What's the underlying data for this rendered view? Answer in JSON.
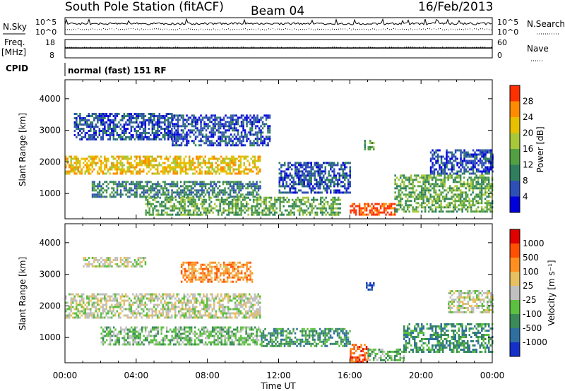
{
  "header": {
    "station": "South Pole Station (fitACF)",
    "beam": "Beam 04",
    "date": "16/Feb/2013"
  },
  "status_panels": {
    "nsky_label": "N.Sky",
    "nsky_ticks": [
      "10^5",
      "10^0"
    ],
    "nsearch_label": "N.Search",
    "nsearch_ticks": [
      "10^5",
      "10^0"
    ],
    "freq_label": "Freq.",
    "freq_unit": "[MHz]",
    "freq_ticks": [
      "18",
      "8"
    ],
    "nave_label": "Nave",
    "nave_ticks": [
      "60",
      "0"
    ],
    "cpid_label": "CPID",
    "cpid_value": "normal (fast) 151 RF"
  },
  "chart_data": [
    {
      "type": "heatmap",
      "name": "power",
      "ylabel": "Slant Range [km]",
      "yticks": [
        "4000",
        "3000",
        "2000",
        "1000"
      ],
      "ylim": [
        200,
        4600
      ],
      "xlim": [
        0,
        24
      ],
      "xticks": [
        "00:00",
        "04:00",
        "08:00",
        "12:00",
        "16:00",
        "20:00",
        "00:00"
      ],
      "colorbar": {
        "label": "Power [dB]",
        "ticks": [
          "28",
          "24",
          "20",
          "16",
          "12",
          "8",
          "4"
        ],
        "colors": [
          "#0000dd",
          "#2e4fb5",
          "#2f7f5f",
          "#53a043",
          "#a8c83a",
          "#e8c000",
          "#ff8c00",
          "#ff3000"
        ]
      },
      "bands": [
        {
          "t0": 0.0,
          "t1": 11.0,
          "r0": 1650,
          "r1": 2200,
          "level": 5
        },
        {
          "t0": 0.5,
          "t1": 6.0,
          "r0": 2700,
          "r1": 3550,
          "level": 1
        },
        {
          "t0": 6.0,
          "t1": 11.5,
          "r0": 2500,
          "r1": 3500,
          "level": 1
        },
        {
          "t0": 1.5,
          "t1": 11.0,
          "r0": 900,
          "r1": 1400,
          "level": 2
        },
        {
          "t0": 4.5,
          "t1": 15.5,
          "r0": 300,
          "r1": 900,
          "level": 3
        },
        {
          "t0": 12.0,
          "t1": 16.0,
          "r0": 1000,
          "r1": 2000,
          "level": 1
        },
        {
          "t0": 16.0,
          "t1": 18.5,
          "r0": 300,
          "r1": 700,
          "level": 7
        },
        {
          "t0": 18.5,
          "t1": 24.0,
          "r0": 400,
          "r1": 1600,
          "level": 3
        },
        {
          "t0": 20.5,
          "t1": 24.0,
          "r0": 1600,
          "r1": 2400,
          "level": 1
        },
        {
          "t0": 16.8,
          "t1": 17.3,
          "r0": 2400,
          "r1": 2700,
          "level": 3
        }
      ]
    },
    {
      "type": "heatmap",
      "name": "velocity",
      "ylabel": "Slant Range [km]",
      "yticks": [
        "4000",
        "3000",
        "2000",
        "1000"
      ],
      "ylim": [
        200,
        4600
      ],
      "xlim": [
        0,
        24
      ],
      "xlabel": "Time UT",
      "xticks": [
        "00:00",
        "04:00",
        "08:00",
        "12:00",
        "16:00",
        "20:00",
        "00:00"
      ],
      "colorbar": {
        "label": "Velocity [m s⁻¹]",
        "ticks": [
          "1000",
          "500",
          "100",
          "25",
          "-25",
          "-100",
          "-500",
          "-1000"
        ],
        "colors": [
          "#1530c8",
          "#2e6fa0",
          "#3a8a5a",
          "#5cc040",
          "#c0c0c0",
          "#e8c060",
          "#ff9020",
          "#ff5000",
          "#e00000"
        ]
      },
      "bands": [
        {
          "t0": 0.0,
          "t1": 11.0,
          "r0": 1650,
          "r1": 2400,
          "level": 4
        },
        {
          "t0": 1.0,
          "t1": 4.5,
          "r0": 3250,
          "r1": 3550,
          "level": 4
        },
        {
          "t0": 6.5,
          "t1": 10.5,
          "r0": 2750,
          "r1": 3400,
          "level": 6
        },
        {
          "t0": 2.0,
          "t1": 11.0,
          "r0": 800,
          "r1": 1350,
          "level": 3
        },
        {
          "t0": 11.0,
          "t1": 16.0,
          "r0": 700,
          "r1": 1300,
          "level": 2
        },
        {
          "t0": 16.0,
          "t1": 17.0,
          "r0": 200,
          "r1": 800,
          "level": 7
        },
        {
          "t0": 17.0,
          "t1": 19.0,
          "r0": 250,
          "r1": 650,
          "level": 3
        },
        {
          "t0": 19.0,
          "t1": 24.0,
          "r0": 550,
          "r1": 1450,
          "level": 2
        },
        {
          "t0": 21.5,
          "t1": 24.0,
          "r0": 1800,
          "r1": 2500,
          "level": 4
        },
        {
          "t0": 16.9,
          "t1": 17.3,
          "r0": 2500,
          "r1": 2750,
          "level": 0
        }
      ]
    }
  ]
}
